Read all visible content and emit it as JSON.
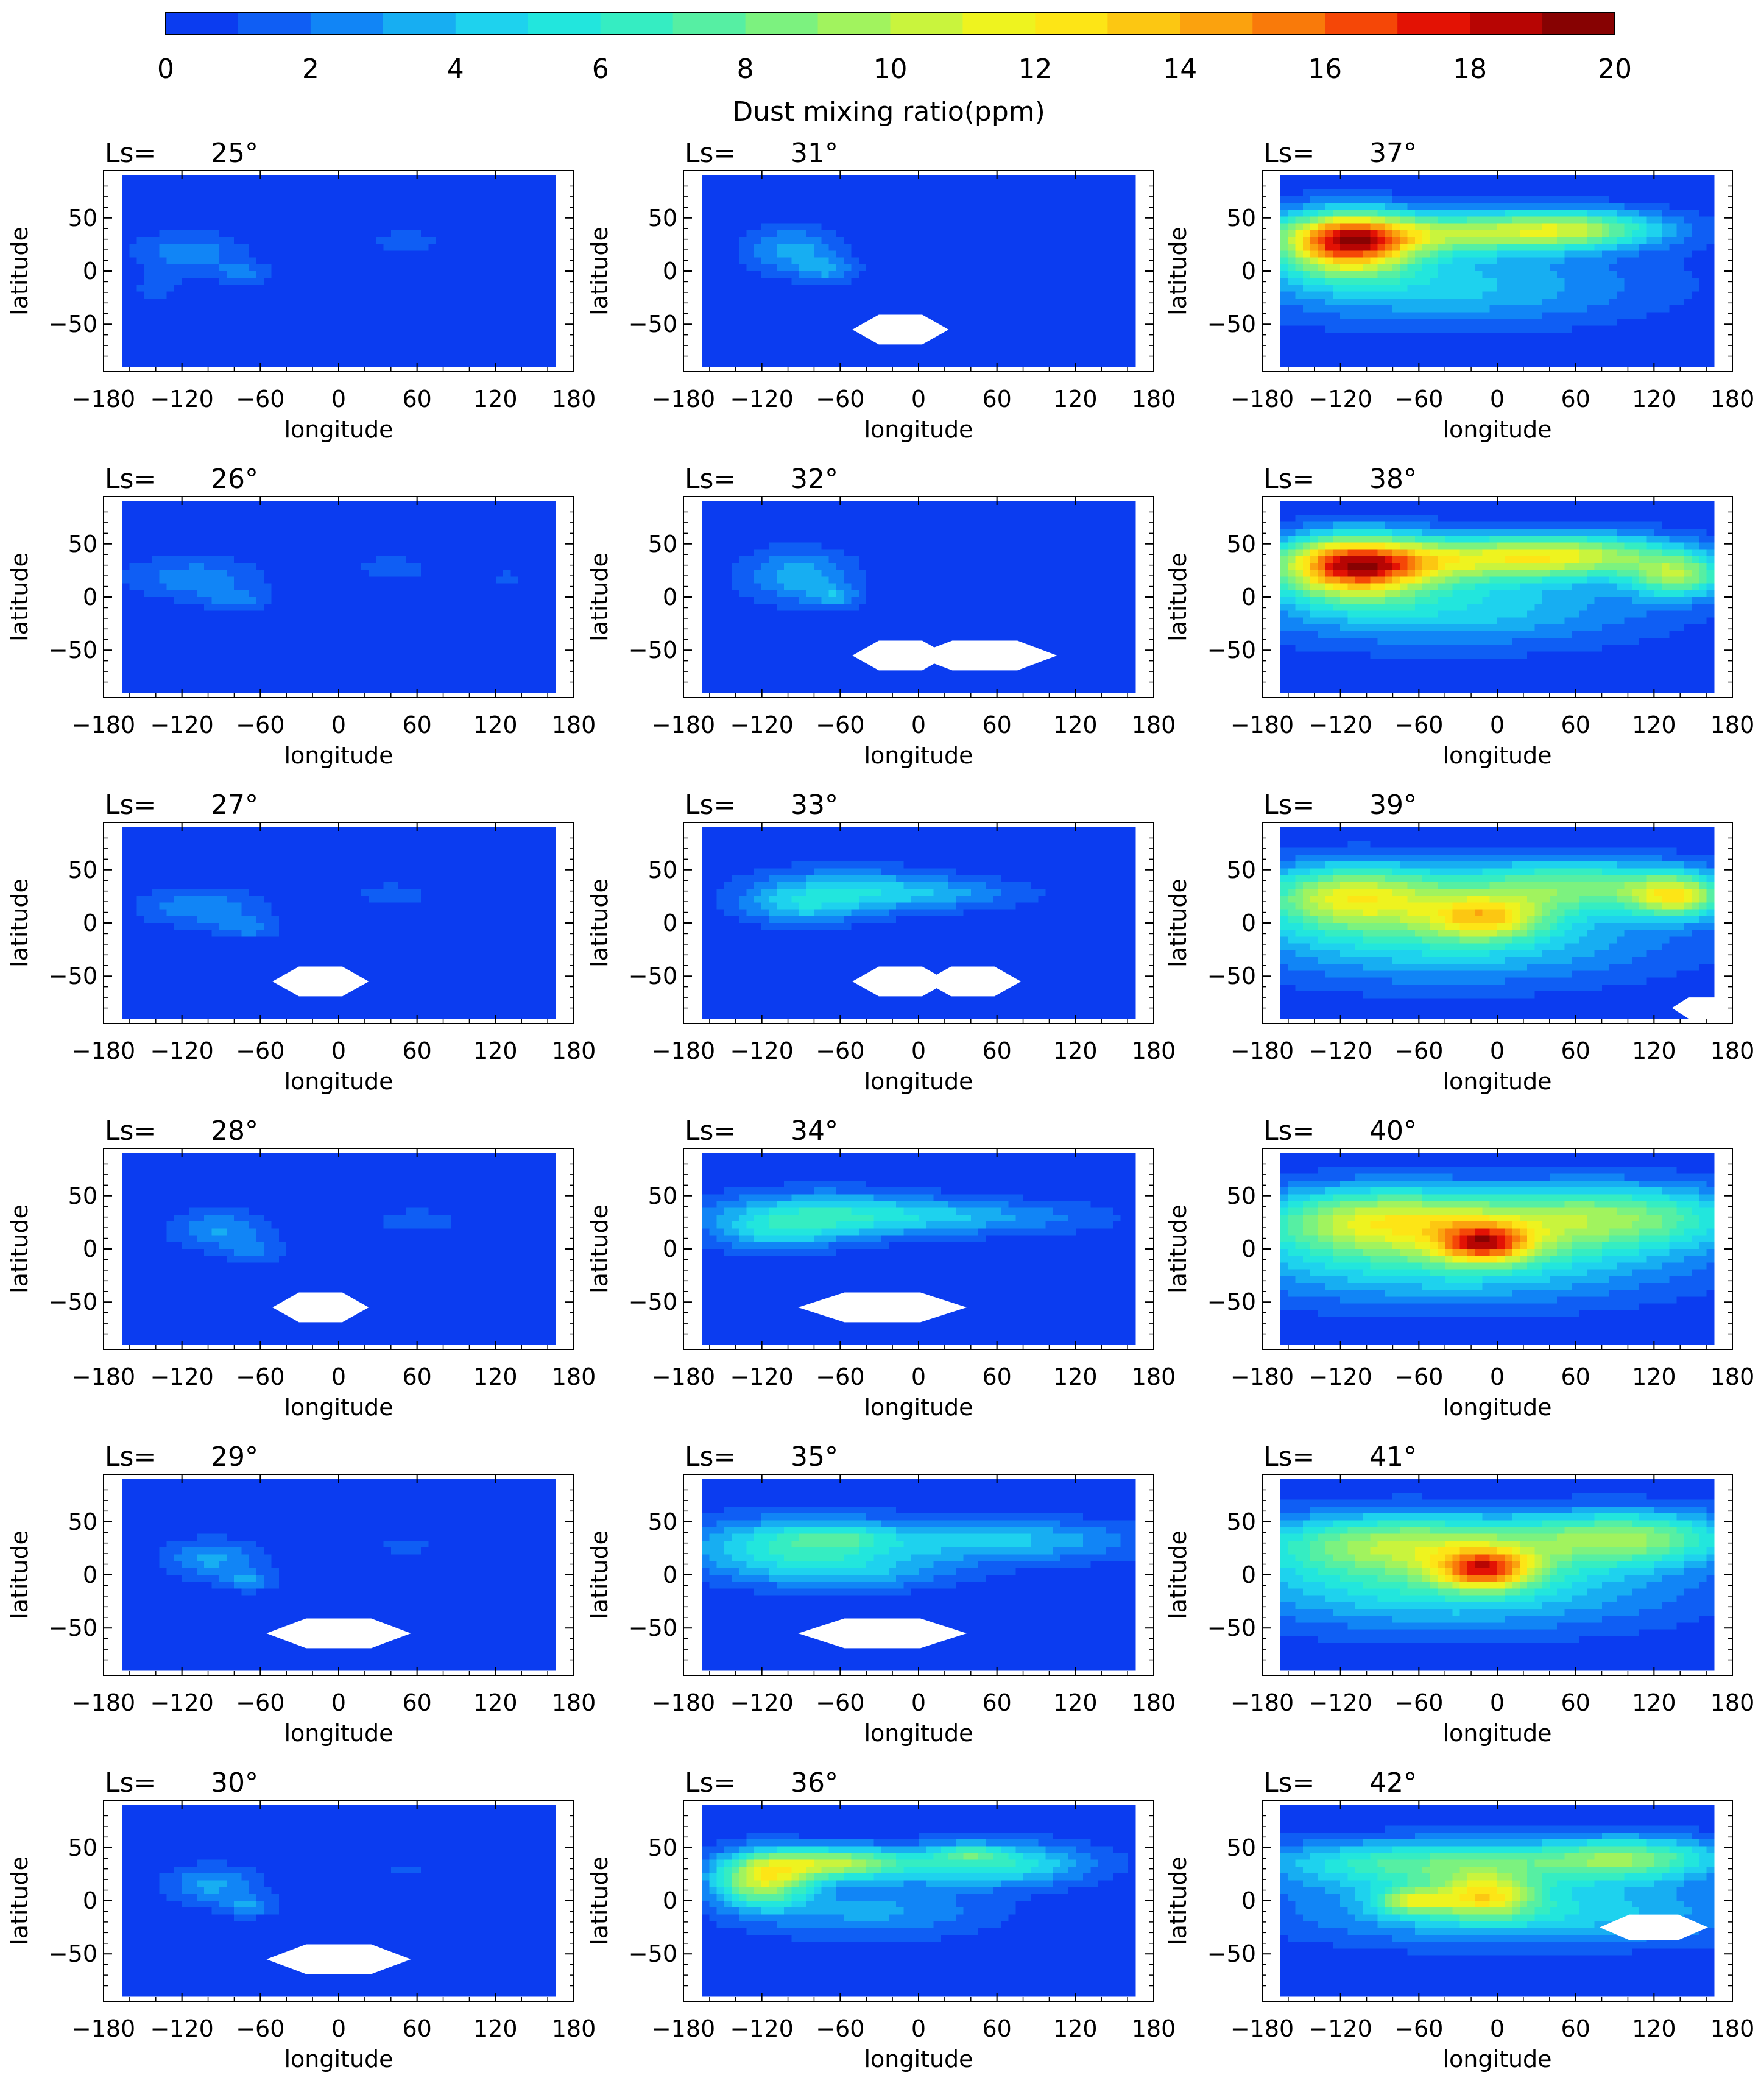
{
  "chart_data": {
    "type": "heatmap",
    "layout": "6 rows x 3 columns of contour maps",
    "colorbar": {
      "label": "Dust mixing ratio(ppm)",
      "ticks": [
        "0",
        "2",
        "4",
        "6",
        "8",
        "10",
        "12",
        "14",
        "16",
        "18",
        "20"
      ],
      "range": [
        0,
        20
      ],
      "levels": 20,
      "colors": [
        "#0b3cf0",
        "#0f5ef4",
        "#1185f6",
        "#17aef2",
        "#1ed2ee",
        "#22e6dd",
        "#35edc2",
        "#56efa3",
        "#7cf27f",
        "#a1f35e",
        "#c9f43d",
        "#eef31f",
        "#fde516",
        "#fcc712",
        "#fba20e",
        "#f97a0a",
        "#f54707",
        "#e31204",
        "#b70503",
        "#870202"
      ]
    },
    "panel_label_prefix": "Ls=",
    "xlabel": "longitude",
    "ylabel": "latitude",
    "xticks": [
      "−180",
      "−120",
      "−60",
      "0",
      "60",
      "120",
      "180"
    ],
    "yticks": [
      "50",
      "0",
      "−50"
    ],
    "xlim": [
      -180,
      180
    ],
    "ylim": [
      -90,
      90
    ],
    "panels": [
      {
        "ls": "25°",
        "blobs": [
          [
            -125,
            18,
            45,
            18,
            2.5
          ],
          [
            -80,
            -2,
            25,
            10,
            2.0
          ],
          [
            55,
            28,
            28,
            10,
            1.6
          ],
          [
            -150,
            -15,
            20,
            12,
            1.3
          ]
        ],
        "gaps": []
      },
      {
        "ls": "26°",
        "blobs": [
          [
            -120,
            18,
            55,
            20,
            2.4
          ],
          [
            -85,
            -3,
            28,
            10,
            1.9
          ],
          [
            45,
            27,
            28,
            10,
            1.8
          ],
          [
            140,
            18,
            16,
            6,
            1.4
          ]
        ],
        "gaps": []
      },
      {
        "ls": "27°",
        "blobs": [
          [
            -115,
            15,
            50,
            18,
            2.6
          ],
          [
            -75,
            -5,
            25,
            10,
            2.0
          ],
          [
            45,
            27,
            30,
            10,
            1.6
          ]
        ],
        "gaps": [
          [
            -15,
            -55,
            40,
            14
          ]
        ]
      },
      {
        "ls": "28°",
        "blobs": [
          [
            -100,
            18,
            40,
            18,
            2.8
          ],
          [
            -70,
            -2,
            25,
            12,
            1.8
          ],
          [
            65,
            27,
            35,
            10,
            1.6
          ]
        ],
        "gaps": [
          [
            -15,
            -55,
            40,
            14
          ]
        ]
      },
      {
        "ls": "29°",
        "blobs": [
          [
            -105,
            15,
            40,
            18,
            3.0
          ],
          [
            -75,
            -5,
            22,
            10,
            2.4
          ],
          [
            55,
            27,
            25,
            8,
            1.4
          ]
        ],
        "gaps": [
          [
            0,
            -55,
            60,
            14
          ]
        ]
      },
      {
        "ls": "30°",
        "blobs": [
          [
            -105,
            15,
            38,
            18,
            3.0
          ],
          [
            -75,
            -5,
            22,
            10,
            2.6
          ],
          [
            55,
            27,
            20,
            6,
            1.2
          ]
        ],
        "gaps": [
          [
            0,
            -55,
            60,
            14
          ]
        ]
      },
      {
        "ls": "31°",
        "blobs": [
          [
            -105,
            20,
            38,
            22,
            3.2
          ],
          [
            -75,
            0,
            25,
            12,
            2.4
          ]
        ],
        "gaps": [
          [
            -15,
            -55,
            40,
            14
          ]
        ]
      },
      {
        "ls": "32°",
        "blobs": [
          [
            -100,
            20,
            45,
            25,
            3.4
          ],
          [
            -70,
            0,
            20,
            10,
            2.6
          ]
        ],
        "gaps": [
          [
            -15,
            -55,
            40,
            14
          ],
          [
            55,
            -55,
            60,
            14
          ]
        ]
      },
      {
        "ls": "33°",
        "blobs": [
          [
            -60,
            30,
            80,
            22,
            3.6
          ],
          [
            -100,
            15,
            45,
            18,
            2.8
          ],
          [
            20,
            28,
            80,
            14,
            2.2
          ]
        ],
        "gaps": [
          [
            -15,
            -55,
            40,
            14
          ],
          [
            45,
            -55,
            40,
            14
          ]
        ]
      },
      {
        "ls": "34°",
        "blobs": [
          [
            -80,
            32,
            90,
            22,
            4.8
          ],
          [
            40,
            30,
            110,
            16,
            3.0
          ],
          [
            -120,
            15,
            50,
            18,
            3.0
          ]
        ],
        "gaps": [
          [
            -30,
            -55,
            70,
            14
          ]
        ]
      },
      {
        "ls": "35°",
        "blobs": [
          [
            -100,
            25,
            90,
            28,
            6.0
          ],
          [
            -70,
            35,
            40,
            10,
            2.0
          ],
          [
            70,
            32,
            110,
            20,
            4.0
          ],
          [
            -40,
            0,
            80,
            15,
            2.0
          ]
        ],
        "gaps": [
          [
            -30,
            -55,
            70,
            14
          ]
        ]
      },
      {
        "ls": "36°",
        "blobs": [
          [
            -130,
            20,
            40,
            25,
            10.0
          ],
          [
            -70,
            35,
            60,
            15,
            9.0
          ],
          [
            60,
            35,
            80,
            20,
            6.0
          ],
          [
            -40,
            -10,
            100,
            25,
            3.0
          ],
          [
            40,
            45,
            25,
            8,
            3.0
          ]
        ],
        "gaps": []
      },
      {
        "ls": "37°",
        "blobs": [
          [
            -125,
            25,
            55,
            30,
            14.0
          ],
          [
            -60,
            35,
            120,
            20,
            7.0
          ],
          [
            60,
            40,
            80,
            18,
            8.0
          ],
          [
            -40,
            -15,
            160,
            35,
            4.0
          ]
        ],
        "gaps": []
      },
      {
        "ls": "38°",
        "blobs": [
          [
            -120,
            28,
            60,
            30,
            13.0
          ],
          [
            -60,
            35,
            120,
            22,
            7.0
          ],
          [
            60,
            40,
            90,
            20,
            8.5
          ],
          [
            150,
            20,
            40,
            20,
            8.0
          ],
          [
            -40,
            -10,
            160,
            35,
            4.5
          ]
        ],
        "gaps": []
      },
      {
        "ls": "39°",
        "blobs": [
          [
            -120,
            25,
            80,
            30,
            10.0
          ],
          [
            60,
            35,
            100,
            25,
            7.5
          ],
          [
            150,
            25,
            40,
            20,
            9.0
          ],
          [
            -10,
            5,
            50,
            20,
            8.0
          ],
          [
            -40,
            -15,
            170,
            40,
            5.0
          ]
        ],
        "gaps": [
          [
            170,
            -80,
            25,
            10
          ]
        ]
      },
      {
        "ls": "40°",
        "blobs": [
          [
            -100,
            28,
            100,
            30,
            9.0
          ],
          [
            90,
            30,
            120,
            30,
            8.0
          ],
          [
            -10,
            5,
            40,
            18,
            10.0
          ],
          [
            -40,
            -10,
            180,
            40,
            5.5
          ]
        ],
        "gaps": []
      },
      {
        "ls": "41°",
        "blobs": [
          [
            -80,
            30,
            120,
            28,
            8.0
          ],
          [
            110,
            35,
            90,
            25,
            8.0
          ],
          [
            -10,
            5,
            40,
            18,
            10.5
          ],
          [
            -40,
            -10,
            180,
            40,
            5.5
          ]
        ],
        "gaps": []
      },
      {
        "ls": "42°",
        "blobs": [
          [
            -60,
            35,
            130,
            22,
            7.0
          ],
          [
            110,
            40,
            80,
            20,
            7.5
          ],
          [
            -10,
            5,
            40,
            20,
            8.0
          ],
          [
            -70,
            0,
            30,
            12,
            7.0
          ],
          [
            20,
            -10,
            180,
            30,
            5.0
          ]
        ],
        "gaps": [
          [
            130,
            -25,
            45,
            12
          ]
        ]
      }
    ]
  }
}
